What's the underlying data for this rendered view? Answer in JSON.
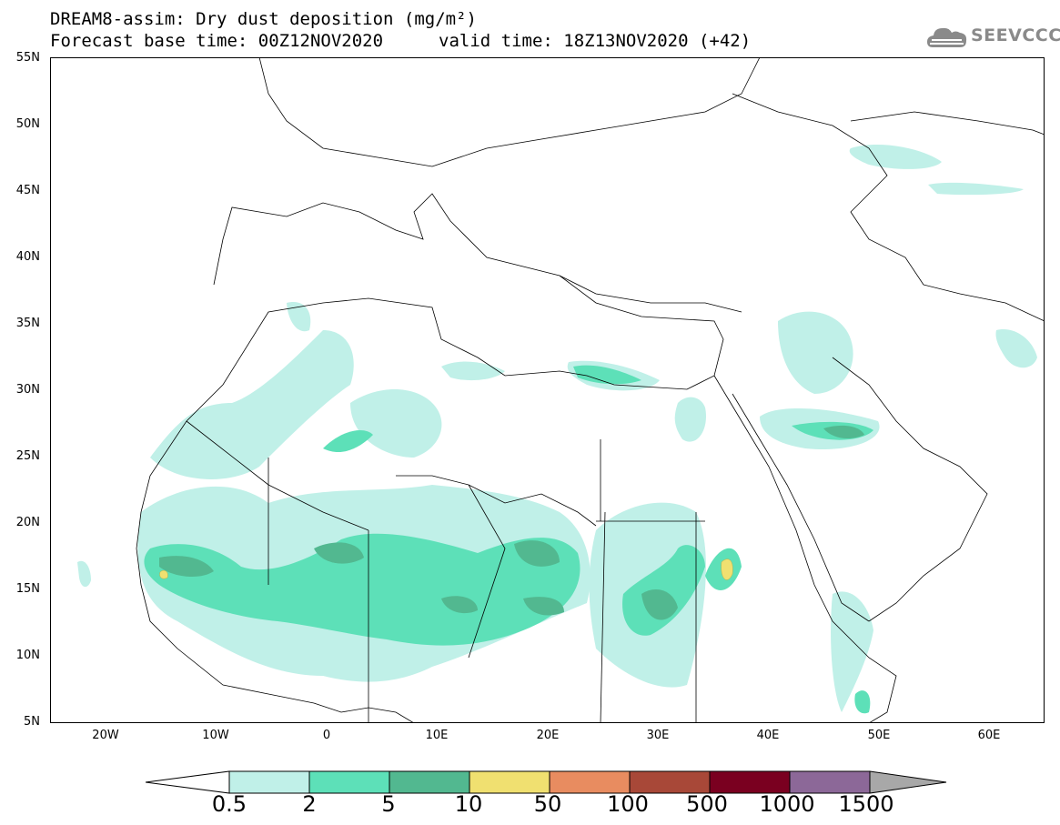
{
  "header": {
    "title_line1": "DREAM8-assim: Dry dust deposition (mg/m²)",
    "title_line2": "Forecast base time: 00Z12NOV2020",
    "valid_time": "valid time: 18Z13NOV2020 (+42)"
  },
  "logo": {
    "text": "SEEVCCC",
    "icon": "cloud-icon"
  },
  "map": {
    "lon_range": [
      -25,
      65
    ],
    "lat_range": [
      5,
      55
    ],
    "lat_labels": [
      "55N",
      "50N",
      "45N",
      "40N",
      "35N",
      "30N",
      "25N",
      "20N",
      "15N",
      "10N",
      "5N"
    ],
    "lon_labels": [
      "20W",
      "10W",
      "0",
      "10E",
      "20E",
      "30E",
      "40E",
      "50E",
      "60E"
    ]
  },
  "legend": {
    "levels": [
      "0.5",
      "2",
      "5",
      "10",
      "50",
      "100",
      "500",
      "1000",
      "1500"
    ],
    "colors": [
      "#c0f0e8",
      "#5de0b8",
      "#52b890",
      "#f0e070",
      "#e88c60",
      "#a84838",
      "#7a0020",
      "#8c6898",
      "#a8a8a8"
    ],
    "under_color": "#ffffff"
  }
}
